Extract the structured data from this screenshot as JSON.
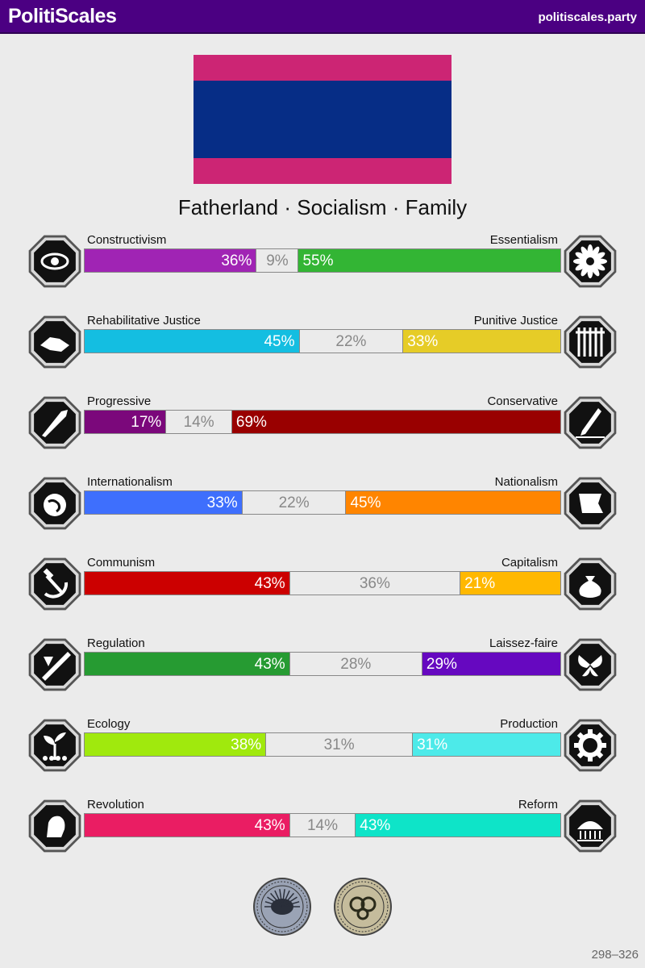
{
  "header": {
    "brand": "PolitiScales",
    "site": "politiscales.party"
  },
  "flag": {
    "stripes": [
      {
        "color": "#cc2574",
        "fraction": 0.2
      },
      {
        "color": "#062d86",
        "fraction": 0.6
      },
      {
        "color": "#cc2574",
        "fraction": 0.2
      }
    ]
  },
  "slogan": "Fatherland · Socialism · Family",
  "axes": [
    {
      "left_label": "Constructivism",
      "right_label": "Essentialism",
      "left_pct": 36,
      "mid_pct": 9,
      "right_pct": 55,
      "left_text": "36%",
      "mid_text": "9%",
      "right_text": "55%",
      "left_color": "#a024b4",
      "right_color": "#33b534",
      "left_icon": "eye-icon",
      "right_icon": "flower-icon"
    },
    {
      "left_label": "Rehabilitative Justice",
      "right_label": "Punitive Justice",
      "left_pct": 45,
      "mid_pct": 22,
      "right_pct": 33,
      "left_text": "45%",
      "mid_text": "22%",
      "right_text": "33%",
      "left_color": "#14bee1",
      "right_color": "#e6cc27",
      "left_icon": "handshake-icon",
      "right_icon": "prison-bars-icon"
    },
    {
      "left_label": "Progressive",
      "right_label": "Conservative",
      "left_pct": 17,
      "mid_pct": 14,
      "right_pct": 69,
      "left_text": "17%",
      "mid_text": "14%",
      "right_text": "69%",
      "left_color": "#7b087b",
      "right_color": "#990000",
      "left_icon": "rocket-icon",
      "right_icon": "quill-icon"
    },
    {
      "left_label": "Internationalism",
      "right_label": "Nationalism",
      "left_pct": 33,
      "mid_pct": 22,
      "right_pct": 45,
      "left_text": "33%",
      "mid_text": "22%",
      "right_text": "45%",
      "left_color": "#3e6ffd",
      "right_color": "#ff8500",
      "left_icon": "globe-icon",
      "right_icon": "flag-icon"
    },
    {
      "left_label": "Communism",
      "right_label": "Capitalism",
      "left_pct": 43,
      "mid_pct": 36,
      "right_pct": 21,
      "left_text": "43%",
      "mid_text": "36%",
      "right_text": "21%",
      "left_color": "#cc0000",
      "right_color": "#ffb800",
      "left_icon": "hammer-sickle-icon",
      "right_icon": "money-bag-icon"
    },
    {
      "left_label": "Regulation",
      "right_label": "Laissez-faire",
      "left_pct": 43,
      "mid_pct": 28,
      "right_pct": 29,
      "left_text": "43%",
      "mid_text": "28%",
      "right_text": "29%",
      "left_color": "#269b32",
      "right_color": "#6608c0",
      "left_icon": "ruler-icon",
      "right_icon": "butterfly-icon"
    },
    {
      "left_label": "Ecology",
      "right_label": "Production",
      "left_pct": 38,
      "mid_pct": 31,
      "right_pct": 31,
      "left_text": "38%",
      "mid_text": "31%",
      "right_text": "31%",
      "left_color": "#a0e90d",
      "right_color": "#4deae9",
      "left_icon": "seedling-icon",
      "right_icon": "gear-icon"
    },
    {
      "left_label": "Revolution",
      "right_label": "Reform",
      "left_pct": 43,
      "mid_pct": 14,
      "right_pct": 43,
      "left_text": "43%",
      "mid_text": "14%",
      "right_text": "43%",
      "left_color": "#ea1d63",
      "right_color": "#0ee4c8",
      "left_icon": "fist-icon",
      "right_icon": "parliament-icon"
    }
  ],
  "badges": [
    {
      "icon": "brain-seal-icon",
      "color": "#9aa3b5"
    },
    {
      "icon": "gears-seal-icon",
      "color": "#c5bc9c"
    }
  ],
  "footer": {
    "code": "298–326"
  }
}
